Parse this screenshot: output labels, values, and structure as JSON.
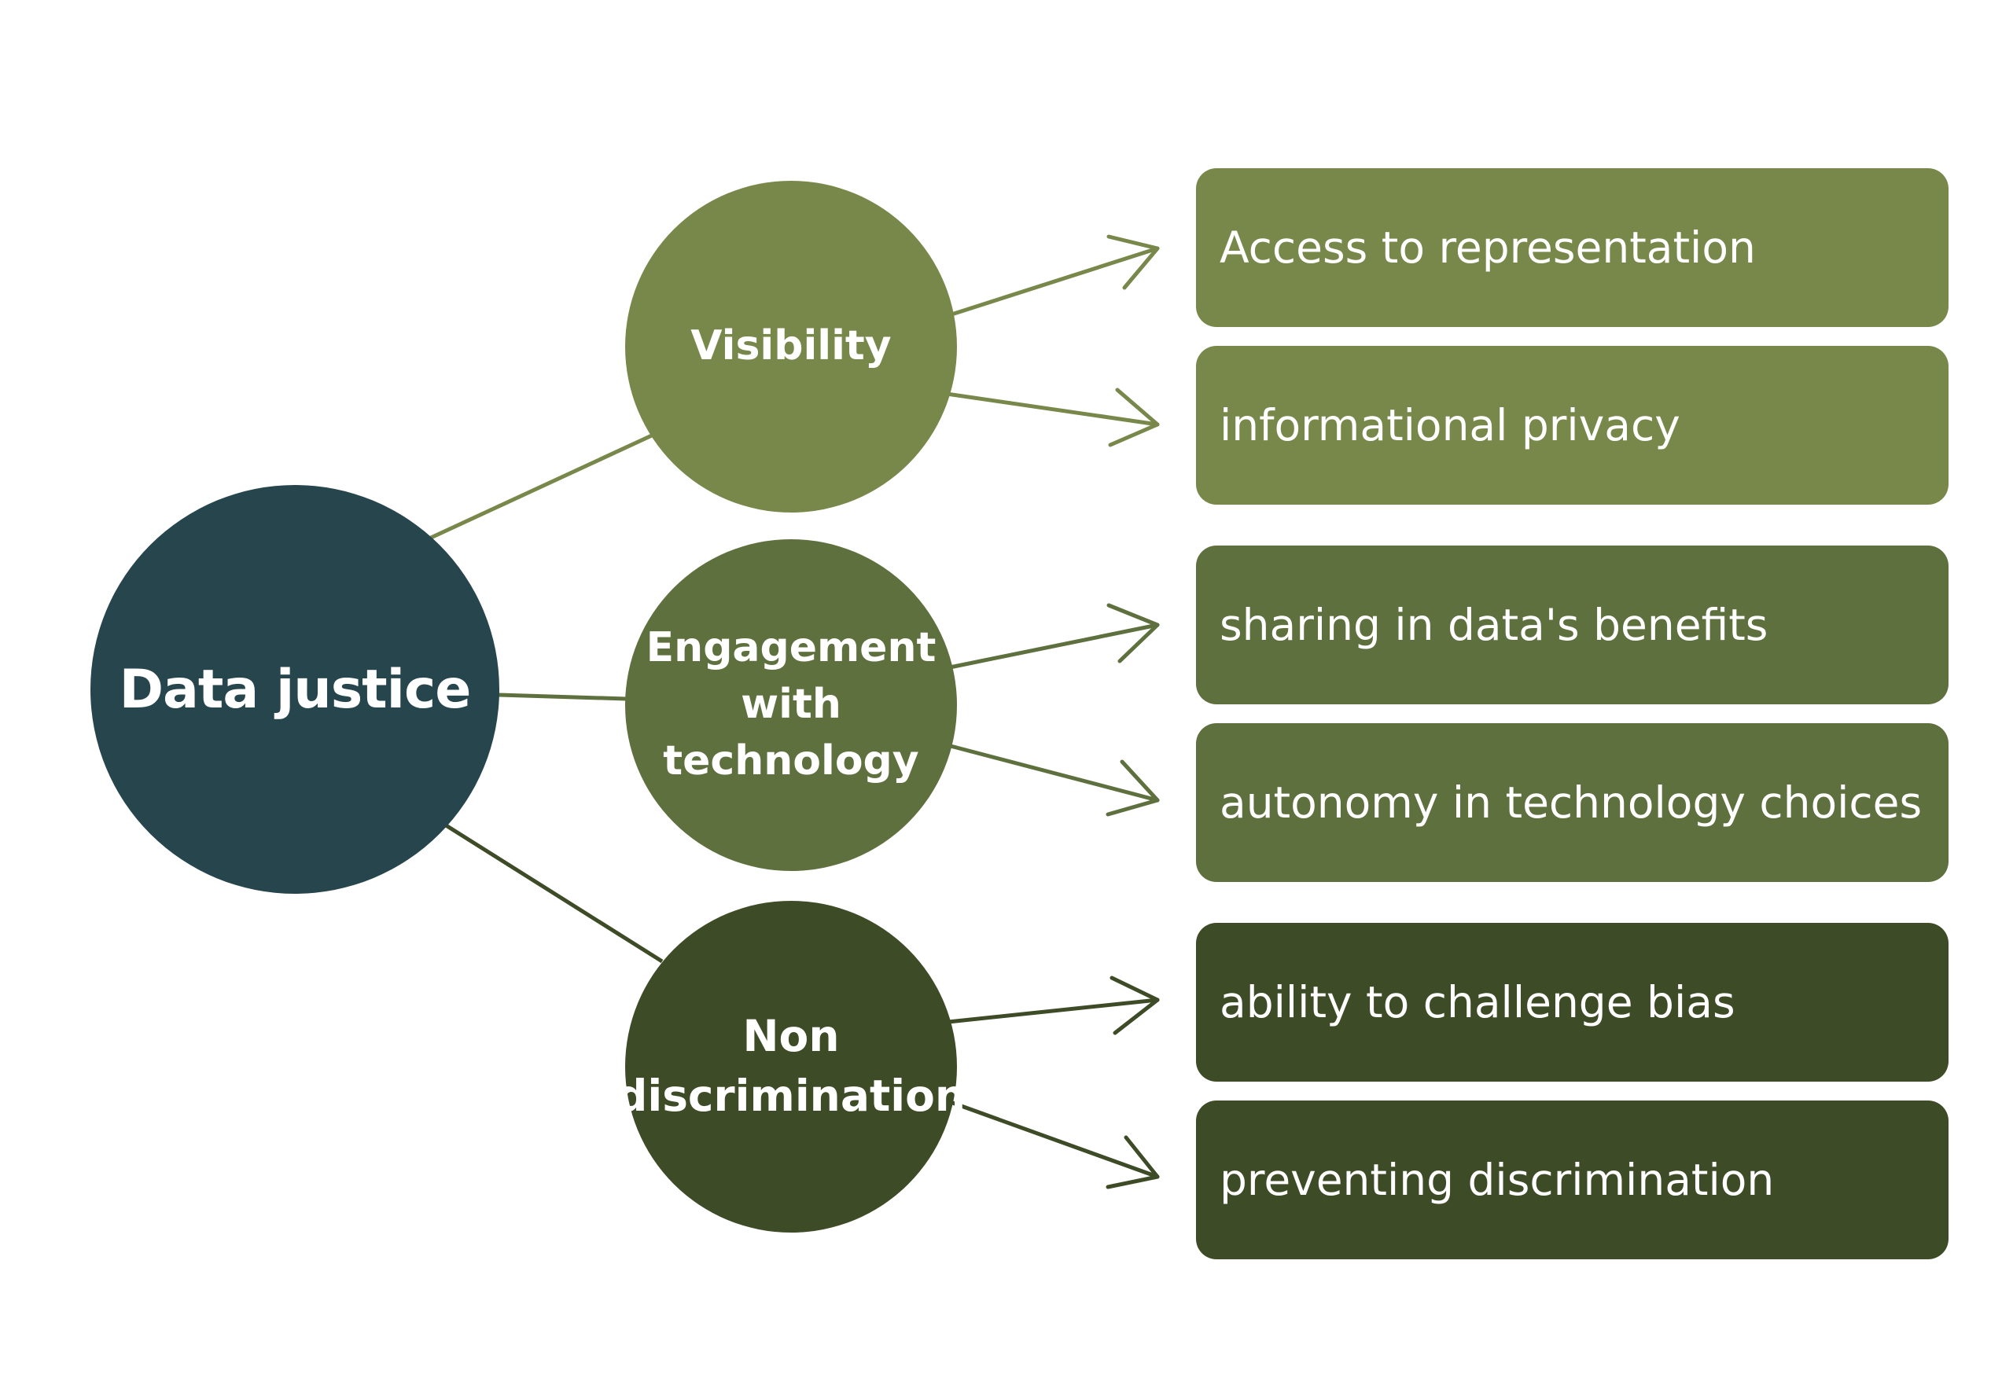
{
  "root": {
    "label": "Data justice",
    "color": "#27454d"
  },
  "categories": [
    {
      "label": "Visibility",
      "color": "#78884a",
      "items": [
        "Access to representation",
        "informational privacy"
      ]
    },
    {
      "label": "Engagement\nwith\ntechnology",
      "color": "#5f703f",
      "items": [
        "sharing in data's benefits",
        "autonomy in technology choices"
      ]
    },
    {
      "label": "Non\ndiscrimination",
      "color": "#3e4b27",
      "items": [
        "ability to challenge bias",
        "preventing discrimination"
      ]
    }
  ]
}
